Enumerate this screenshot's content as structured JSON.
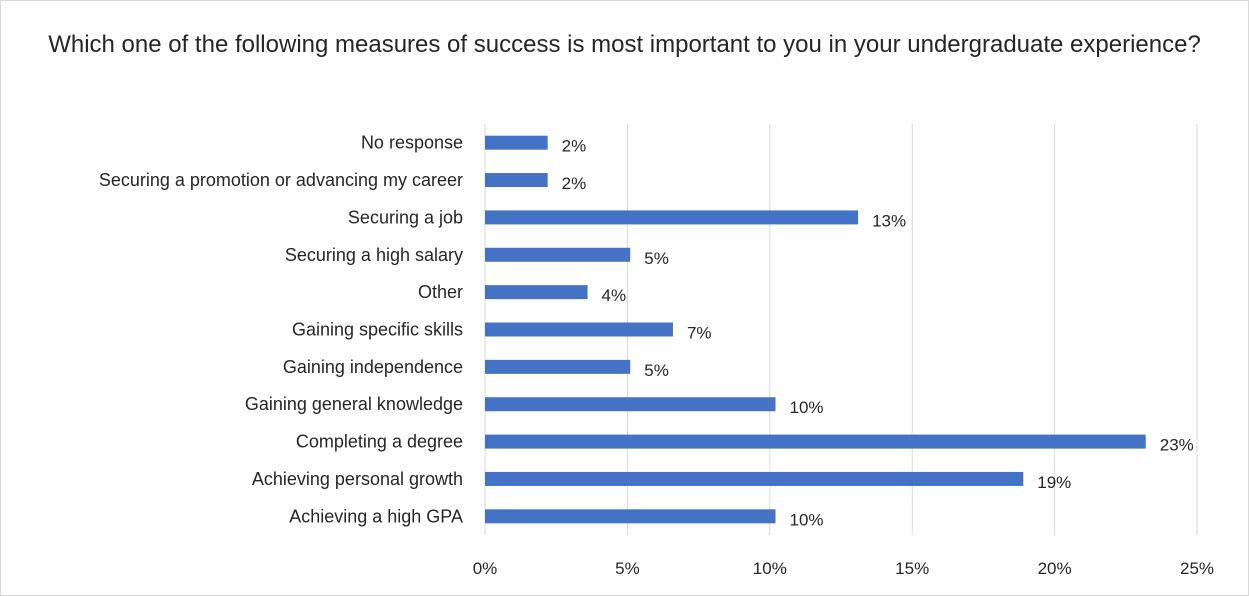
{
  "chart_data": {
    "type": "bar",
    "orientation": "horizontal",
    "title": "Which one of the following measures of success is most important to you in your undergraduate experience?",
    "categories": [
      "No response",
      "Securing a promotion or advancing my career",
      "Securing a job",
      "Securing a high salary",
      "Other",
      "Gaining specific skills",
      "Gaining independence",
      "Gaining general knowledge",
      "Completing a degree",
      "Achieving personal growth",
      "Achieving a high GPA"
    ],
    "values": [
      2.2,
      2.2,
      13.1,
      5.1,
      3.6,
      6.6,
      5.1,
      10.2,
      23.2,
      18.9,
      10.2
    ],
    "data_labels": [
      "2%",
      "2%",
      "13%",
      "5%",
      "4%",
      "7%",
      "5%",
      "10%",
      "23%",
      "19%",
      "10%"
    ],
    "x_ticks": [
      "0%",
      "5%",
      "10%",
      "15%",
      "20%",
      "25%"
    ],
    "xlim": [
      0,
      25
    ],
    "xlabel": "",
    "ylabel": "",
    "grid": "vertical",
    "legend": "none",
    "bar_color": "#4472c4",
    "grid_color": "#d9d9d9"
  }
}
